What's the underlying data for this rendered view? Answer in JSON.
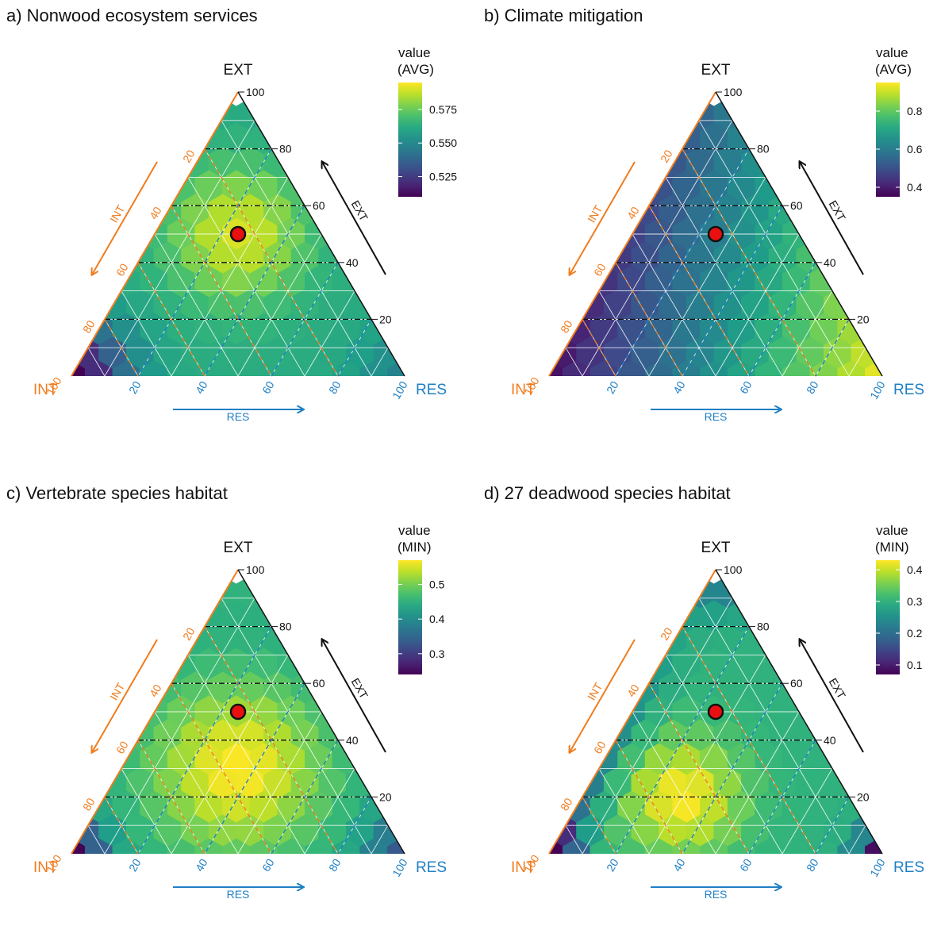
{
  "figure": {
    "panels": [
      {
        "title": "a) Nonwood ecosystem services",
        "legend_title_line1": "value",
        "legend_title_line2": "(AVG)",
        "legend_ticks": [
          "0.575",
          "0.550",
          "0.525"
        ]
      },
      {
        "title": "b) Climate mitigation",
        "legend_title_line1": "value",
        "legend_title_line2": "(AVG)",
        "legend_ticks": [
          "0.8",
          "0.6",
          "0.4"
        ]
      },
      {
        "title": "c) Vertebrate species habitat",
        "legend_title_line1": "value",
        "legend_title_line2": "(MIN)",
        "legend_ticks": [
          "0.5",
          "0.4",
          "0.3"
        ]
      },
      {
        "title": "d) 27 deadwood species habitat",
        "legend_title_line1": "value",
        "legend_title_line2": "(MIN)",
        "legend_ticks": [
          "0.4",
          "0.3",
          "0.2",
          "0.1"
        ]
      }
    ]
  },
  "chart_data": [
    {
      "type": "heatmap",
      "subtype": "ternary",
      "title": "a) Nonwood ecosystem services",
      "axes": {
        "top": "EXT",
        "left": "INT",
        "right": "RES"
      },
      "axis_ticks": [
        20,
        40,
        60,
        80,
        100
      ],
      "arrow_labels": {
        "top": "EXT",
        "left": "INT",
        "bottom": "RES"
      },
      "legend_title": "value (AVG)",
      "legend_ticks": [
        0.575,
        0.55,
        0.525
      ],
      "color_range": [
        0.51,
        0.595
      ],
      "colormap": "viridis",
      "marker": {
        "INT": 25,
        "RES": 25,
        "EXT": 50,
        "color": "#e81010"
      },
      "value_field": {
        "base": 0.562,
        "peak": {
          "INT": 25,
          "RES": 25,
          "EXT": 50
        },
        "peak_value": 0.59,
        "corner_values": {
          "INT": 0.51,
          "RES": 0.548,
          "EXT": 0.56
        }
      }
    },
    {
      "type": "heatmap",
      "subtype": "ternary",
      "title": "b) Climate mitigation",
      "axes": {
        "top": "EXT",
        "left": "INT",
        "right": "RES"
      },
      "axis_ticks": [
        20,
        40,
        60,
        80,
        100
      ],
      "arrow_labels": {
        "top": "EXT",
        "left": "INT",
        "bottom": "RES"
      },
      "legend_title": "value (AVG)",
      "legend_ticks": [
        0.8,
        0.6,
        0.4
      ],
      "color_range": [
        0.35,
        0.95
      ],
      "colormap": "viridis",
      "marker": {
        "INT": 25,
        "RES": 25,
        "EXT": 50,
        "color": "#e81010"
      },
      "value_field": {
        "corner_values": {
          "INT": 0.38,
          "RES": 0.93,
          "EXT": 0.56
        }
      }
    },
    {
      "type": "heatmap",
      "subtype": "ternary",
      "title": "c) Vertebrate species habitat",
      "axes": {
        "top": "EXT",
        "left": "INT",
        "right": "RES"
      },
      "axis_ticks": [
        20,
        40,
        60,
        80,
        100
      ],
      "arrow_labels": {
        "top": "EXT",
        "left": "INT",
        "bottom": "RES"
      },
      "legend_title": "value (MIN)",
      "legend_ticks": [
        0.5,
        0.4,
        0.3
      ],
      "color_range": [
        0.24,
        0.57
      ],
      "colormap": "viridis",
      "marker": {
        "INT": 25,
        "RES": 25,
        "EXT": 50,
        "color": "#e81010"
      },
      "value_field": {
        "peak": {
          "INT": 35,
          "RES": 35,
          "EXT": 30
        },
        "peak_value": 0.57,
        "corner_values": {
          "INT": 0.24,
          "RES": 0.33,
          "EXT": 0.46
        }
      }
    },
    {
      "type": "heatmap",
      "subtype": "ternary",
      "title": "d) 27 deadwood species habitat",
      "axes": {
        "top": "EXT",
        "left": "INT",
        "right": "RES"
      },
      "axis_ticks": [
        20,
        40,
        60,
        80,
        100
      ],
      "arrow_labels": {
        "top": "EXT",
        "left": "INT",
        "bottom": "RES"
      },
      "legend_title": "value (MIN)",
      "legend_ticks": [
        0.4,
        0.3,
        0.2,
        0.1
      ],
      "color_range": [
        0.07,
        0.43
      ],
      "colormap": "viridis",
      "marker": {
        "INT": 25,
        "RES": 25,
        "EXT": 50,
        "color": "#e81010"
      },
      "value_field": {
        "peak": {
          "INT": 50,
          "RES": 30,
          "EXT": 20
        },
        "peak_value": 0.43,
        "corner_values": {
          "INT": 0.07,
          "RES": 0.08,
          "EXT": 0.2
        }
      }
    }
  ],
  "colors": {
    "int": "#f07c1e",
    "res": "#1f7fc4",
    "ext": "#111111",
    "marker": "#e81010"
  }
}
